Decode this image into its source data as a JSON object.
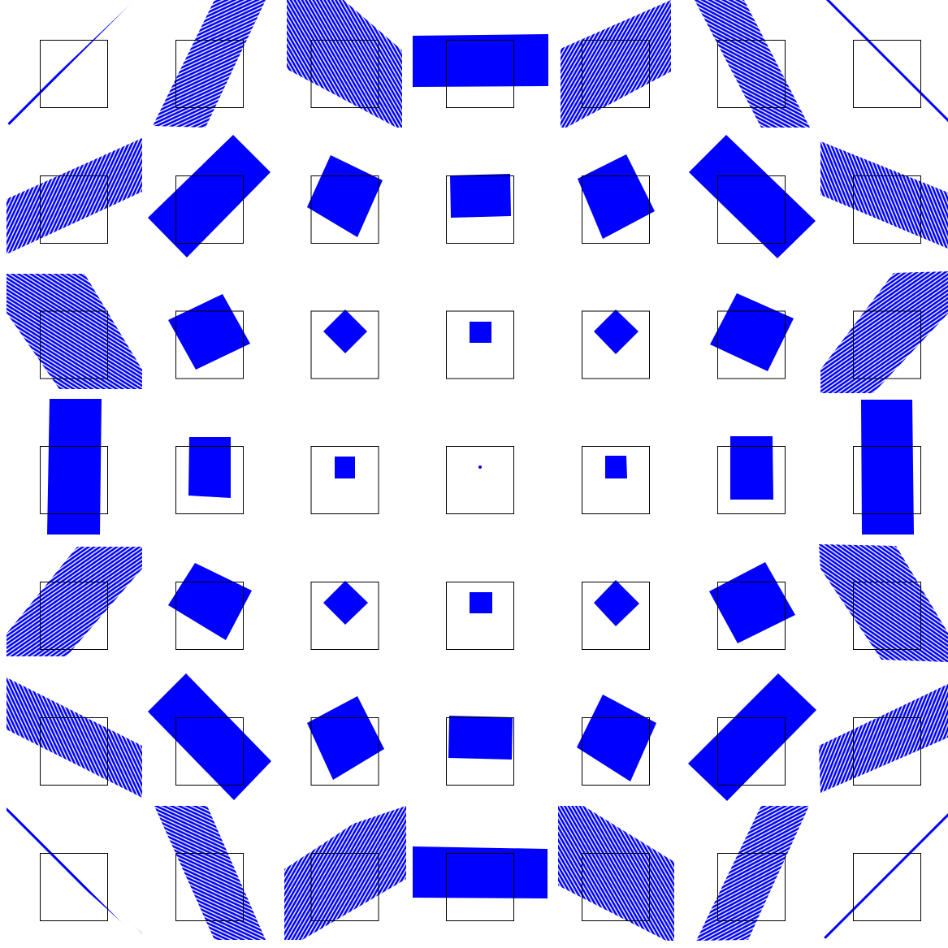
{
  "colors": {
    "background": "#ffffff",
    "frame": "#000000",
    "shape_fill": "#0000ff"
  },
  "grid": {
    "rows": 7,
    "cols": 7
  }
}
